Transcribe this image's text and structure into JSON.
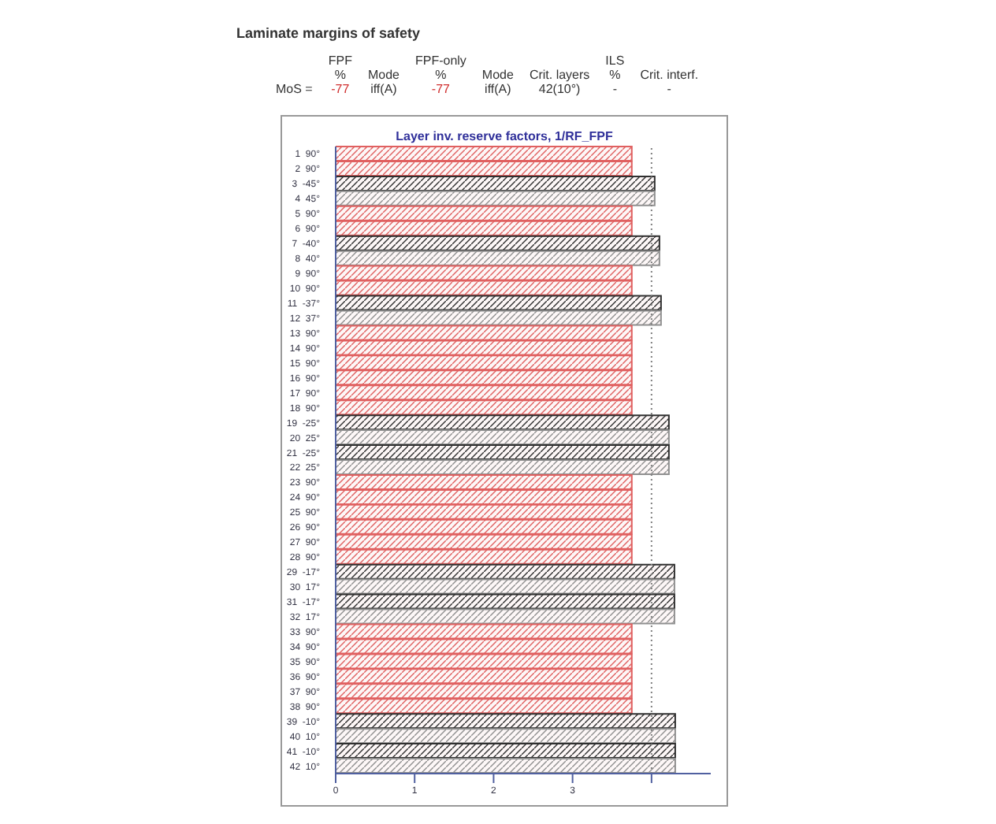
{
  "chart_data": {
    "type": "bar",
    "orientation": "horizontal",
    "title": "Layer inv. reserve factors, 1/RF_FPF",
    "categories": [
      "1  90°",
      "2  90°",
      "3  -45°",
      "4  45°",
      "5  90°",
      "6  90°",
      "7  -40°",
      "8  40°",
      "9  90°",
      "10  90°",
      "11  -37°",
      "12  37°",
      "13  90°",
      "14  90°",
      "15  90°",
      "16  90°",
      "17  90°",
      "18  90°",
      "19  -25°",
      "20  25°",
      "21  -25°",
      "22  25°",
      "23  90°",
      "24  90°",
      "25  90°",
      "26  90°",
      "27  90°",
      "28  90°",
      "29  -17°",
      "30  17°",
      "31  -17°",
      "32  17°",
      "33  90°",
      "34  90°",
      "35  90°",
      "36  90°",
      "37  90°",
      "38  90°",
      "39  -10°",
      "40  10°",
      "41  -10°",
      "42  10°"
    ],
    "values": [
      3.75,
      3.75,
      4.04,
      4.04,
      3.75,
      3.75,
      4.1,
      4.1,
      3.75,
      3.75,
      4.12,
      4.12,
      3.75,
      3.75,
      3.75,
      3.75,
      3.75,
      3.75,
      4.22,
      4.22,
      4.22,
      4.22,
      3.75,
      3.75,
      3.75,
      3.75,
      3.75,
      3.75,
      4.29,
      4.29,
      4.29,
      4.29,
      3.75,
      3.75,
      3.75,
      3.75,
      3.75,
      3.75,
      4.3,
      4.3,
      4.3,
      4.3
    ],
    "colors": [
      "#e06060",
      "#e06060",
      "#303030",
      "#909090",
      "#e06060",
      "#e06060",
      "#303030",
      "#909090",
      "#e06060",
      "#e06060",
      "#303030",
      "#909090",
      "#e06060",
      "#e06060",
      "#e06060",
      "#e06060",
      "#e06060",
      "#e06060",
      "#303030",
      "#909090",
      "#303030",
      "#909090",
      "#e06060",
      "#e06060",
      "#e06060",
      "#e06060",
      "#e06060",
      "#e06060",
      "#303030",
      "#909090",
      "#303030",
      "#909090",
      "#e06060",
      "#e06060",
      "#e06060",
      "#e06060",
      "#e06060",
      "#e06060",
      "#303030",
      "#909090",
      "#303030",
      "#909090"
    ],
    "xlim": [
      0,
      4.75
    ],
    "xticks": [
      0,
      1,
      2,
      3,
      {
        "value": 4,
        "label": null
      }
    ],
    "ref_lines": [
      {
        "axis": "x",
        "value": 4,
        "line_style": "dotted",
        "color": "#808080"
      }
    ],
    "annotations": [
      "Laminate margins of safety",
      "FPF\n%",
      "Mode",
      "FPF-only\n%",
      "Mode",
      "Crit. layers",
      "ILS\n%",
      "Crit. interf.",
      "MoS =",
      "-77",
      "iff(A)",
      "-77",
      "iff(A)",
      "42(10°)",
      "-",
      "-"
    ]
  }
}
